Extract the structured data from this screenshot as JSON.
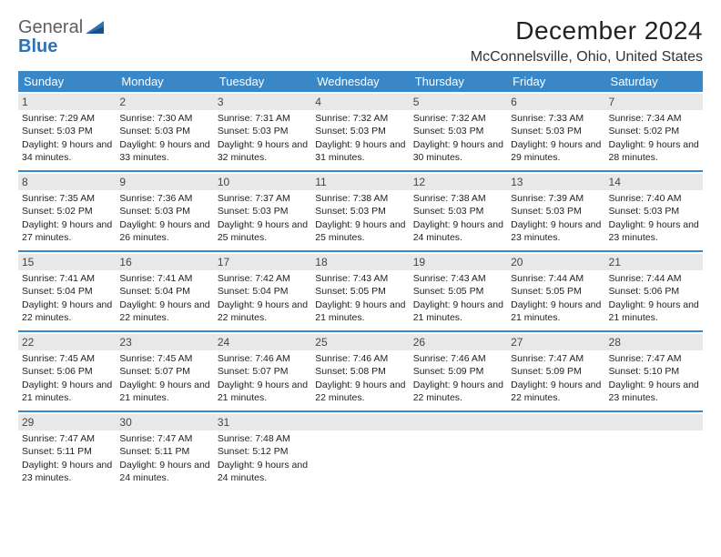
{
  "brand": {
    "word1": "General",
    "word2": "Blue"
  },
  "title": "December 2024",
  "location": "McConnelsville, Ohio, United States",
  "colors": {
    "header_bg": "#3a87c8",
    "daynum_bg": "#e8e8e8",
    "rule": "#3a87c8",
    "text": "#222222"
  },
  "dow": [
    "Sunday",
    "Monday",
    "Tuesday",
    "Wednesday",
    "Thursday",
    "Friday",
    "Saturday"
  ],
  "weeks": [
    [
      {
        "n": "1",
        "sr": "Sunrise: 7:29 AM",
        "ss": "Sunset: 5:03 PM",
        "dl": "Daylight: 9 hours and 34 minutes."
      },
      {
        "n": "2",
        "sr": "Sunrise: 7:30 AM",
        "ss": "Sunset: 5:03 PM",
        "dl": "Daylight: 9 hours and 33 minutes."
      },
      {
        "n": "3",
        "sr": "Sunrise: 7:31 AM",
        "ss": "Sunset: 5:03 PM",
        "dl": "Daylight: 9 hours and 32 minutes."
      },
      {
        "n": "4",
        "sr": "Sunrise: 7:32 AM",
        "ss": "Sunset: 5:03 PM",
        "dl": "Daylight: 9 hours and 31 minutes."
      },
      {
        "n": "5",
        "sr": "Sunrise: 7:32 AM",
        "ss": "Sunset: 5:03 PM",
        "dl": "Daylight: 9 hours and 30 minutes."
      },
      {
        "n": "6",
        "sr": "Sunrise: 7:33 AM",
        "ss": "Sunset: 5:03 PM",
        "dl": "Daylight: 9 hours and 29 minutes."
      },
      {
        "n": "7",
        "sr": "Sunrise: 7:34 AM",
        "ss": "Sunset: 5:02 PM",
        "dl": "Daylight: 9 hours and 28 minutes."
      }
    ],
    [
      {
        "n": "8",
        "sr": "Sunrise: 7:35 AM",
        "ss": "Sunset: 5:02 PM",
        "dl": "Daylight: 9 hours and 27 minutes."
      },
      {
        "n": "9",
        "sr": "Sunrise: 7:36 AM",
        "ss": "Sunset: 5:03 PM",
        "dl": "Daylight: 9 hours and 26 minutes."
      },
      {
        "n": "10",
        "sr": "Sunrise: 7:37 AM",
        "ss": "Sunset: 5:03 PM",
        "dl": "Daylight: 9 hours and 25 minutes."
      },
      {
        "n": "11",
        "sr": "Sunrise: 7:38 AM",
        "ss": "Sunset: 5:03 PM",
        "dl": "Daylight: 9 hours and 25 minutes."
      },
      {
        "n": "12",
        "sr": "Sunrise: 7:38 AM",
        "ss": "Sunset: 5:03 PM",
        "dl": "Daylight: 9 hours and 24 minutes."
      },
      {
        "n": "13",
        "sr": "Sunrise: 7:39 AM",
        "ss": "Sunset: 5:03 PM",
        "dl": "Daylight: 9 hours and 23 minutes."
      },
      {
        "n": "14",
        "sr": "Sunrise: 7:40 AM",
        "ss": "Sunset: 5:03 PM",
        "dl": "Daylight: 9 hours and 23 minutes."
      }
    ],
    [
      {
        "n": "15",
        "sr": "Sunrise: 7:41 AM",
        "ss": "Sunset: 5:04 PM",
        "dl": "Daylight: 9 hours and 22 minutes."
      },
      {
        "n": "16",
        "sr": "Sunrise: 7:41 AM",
        "ss": "Sunset: 5:04 PM",
        "dl": "Daylight: 9 hours and 22 minutes."
      },
      {
        "n": "17",
        "sr": "Sunrise: 7:42 AM",
        "ss": "Sunset: 5:04 PM",
        "dl": "Daylight: 9 hours and 22 minutes."
      },
      {
        "n": "18",
        "sr": "Sunrise: 7:43 AM",
        "ss": "Sunset: 5:05 PM",
        "dl": "Daylight: 9 hours and 21 minutes."
      },
      {
        "n": "19",
        "sr": "Sunrise: 7:43 AM",
        "ss": "Sunset: 5:05 PM",
        "dl": "Daylight: 9 hours and 21 minutes."
      },
      {
        "n": "20",
        "sr": "Sunrise: 7:44 AM",
        "ss": "Sunset: 5:05 PM",
        "dl": "Daylight: 9 hours and 21 minutes."
      },
      {
        "n": "21",
        "sr": "Sunrise: 7:44 AM",
        "ss": "Sunset: 5:06 PM",
        "dl": "Daylight: 9 hours and 21 minutes."
      }
    ],
    [
      {
        "n": "22",
        "sr": "Sunrise: 7:45 AM",
        "ss": "Sunset: 5:06 PM",
        "dl": "Daylight: 9 hours and 21 minutes."
      },
      {
        "n": "23",
        "sr": "Sunrise: 7:45 AM",
        "ss": "Sunset: 5:07 PM",
        "dl": "Daylight: 9 hours and 21 minutes."
      },
      {
        "n": "24",
        "sr": "Sunrise: 7:46 AM",
        "ss": "Sunset: 5:07 PM",
        "dl": "Daylight: 9 hours and 21 minutes."
      },
      {
        "n": "25",
        "sr": "Sunrise: 7:46 AM",
        "ss": "Sunset: 5:08 PM",
        "dl": "Daylight: 9 hours and 22 minutes."
      },
      {
        "n": "26",
        "sr": "Sunrise: 7:46 AM",
        "ss": "Sunset: 5:09 PM",
        "dl": "Daylight: 9 hours and 22 minutes."
      },
      {
        "n": "27",
        "sr": "Sunrise: 7:47 AM",
        "ss": "Sunset: 5:09 PM",
        "dl": "Daylight: 9 hours and 22 minutes."
      },
      {
        "n": "28",
        "sr": "Sunrise: 7:47 AM",
        "ss": "Sunset: 5:10 PM",
        "dl": "Daylight: 9 hours and 23 minutes."
      }
    ],
    [
      {
        "n": "29",
        "sr": "Sunrise: 7:47 AM",
        "ss": "Sunset: 5:11 PM",
        "dl": "Daylight: 9 hours and 23 minutes."
      },
      {
        "n": "30",
        "sr": "Sunrise: 7:47 AM",
        "ss": "Sunset: 5:11 PM",
        "dl": "Daylight: 9 hours and 24 minutes."
      },
      {
        "n": "31",
        "sr": "Sunrise: 7:48 AM",
        "ss": "Sunset: 5:12 PM",
        "dl": "Daylight: 9 hours and 24 minutes."
      },
      {
        "n": "",
        "sr": "",
        "ss": "",
        "dl": ""
      },
      {
        "n": "",
        "sr": "",
        "ss": "",
        "dl": ""
      },
      {
        "n": "",
        "sr": "",
        "ss": "",
        "dl": ""
      },
      {
        "n": "",
        "sr": "",
        "ss": "",
        "dl": ""
      }
    ]
  ]
}
